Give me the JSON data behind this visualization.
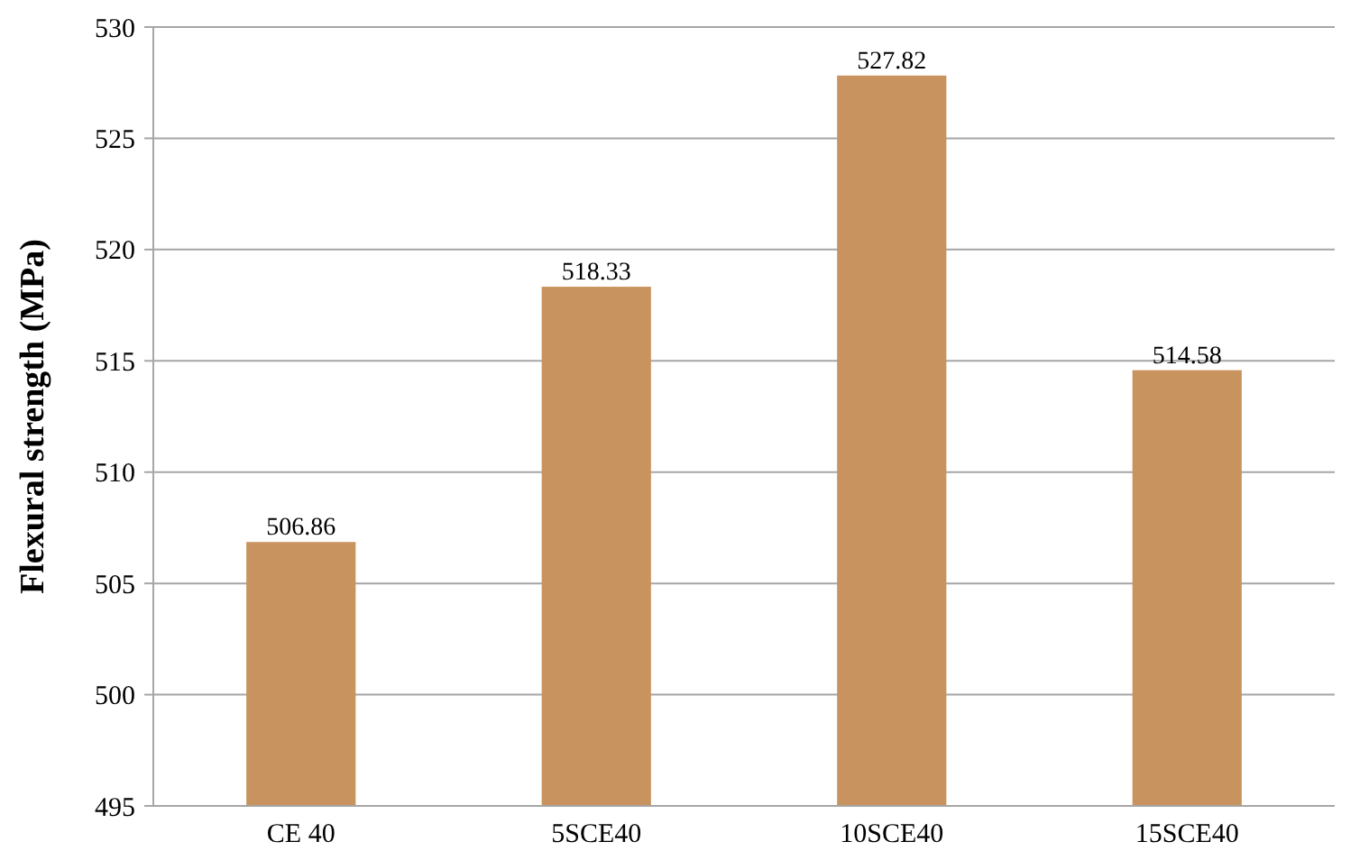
{
  "chart_data": {
    "type": "bar",
    "ylabel": "Flexural strength (MPa)",
    "categories": [
      "CE 40",
      "5SCE40",
      "10SCE40",
      "15SCE40"
    ],
    "values": [
      506.86,
      518.33,
      527.82,
      514.58
    ],
    "color": "#c8935e",
    "ylim": [
      495,
      530
    ],
    "yticks": [
      495,
      500,
      505,
      510,
      515,
      520,
      525,
      530
    ],
    "grid": "y",
    "data_labels": true
  }
}
